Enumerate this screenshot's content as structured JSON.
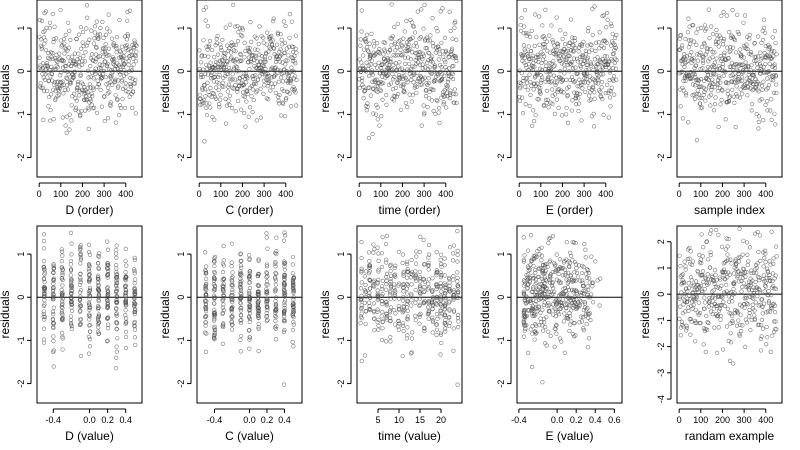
{
  "chart_data": [
    {
      "type": "scatter",
      "xlabel": "D (order)",
      "ylabel": "residuals",
      "xlim": [
        -10,
        475
      ],
      "ylim": [
        -2.45,
        1.65
      ],
      "xticks": [
        0,
        100,
        200,
        300,
        400
      ],
      "yticks": [
        -2,
        -1,
        0,
        1
      ],
      "reference_line_y": 0,
      "n": 450,
      "y_center": 0.05,
      "y_spread": 0.55,
      "x_mode": "order",
      "pattern": "u-shape"
    },
    {
      "type": "scatter",
      "xlabel": "C (order)",
      "ylabel": "residuals",
      "xlim": [
        -10,
        475
      ],
      "ylim": [
        -2.45,
        1.65
      ],
      "xticks": [
        0,
        100,
        200,
        300,
        400
      ],
      "yticks": [
        -2,
        -1,
        0,
        1
      ],
      "reference_line_y": 0,
      "n": 450,
      "y_center": 0.05,
      "y_spread": 0.55,
      "x_mode": "order",
      "pattern": "none"
    },
    {
      "type": "scatter",
      "xlabel": "time (order)",
      "ylabel": "residuals",
      "xlim": [
        -10,
        475
      ],
      "ylim": [
        -2.45,
        1.65
      ],
      "xticks": [
        0,
        100,
        200,
        300,
        400
      ],
      "yticks": [
        -2,
        -1,
        0,
        1
      ],
      "reference_line_y": 0,
      "n": 450,
      "y_center": 0.05,
      "y_spread": 0.55,
      "x_mode": "order",
      "pattern": "none"
    },
    {
      "type": "scatter",
      "xlabel": "E (order)",
      "ylabel": "residuals",
      "xlim": [
        -10,
        475
      ],
      "ylim": [
        -2.45,
        1.65
      ],
      "xticks": [
        0,
        100,
        200,
        300,
        400
      ],
      "yticks": [
        -2,
        -1,
        0,
        1
      ],
      "reference_line_y": 0,
      "n": 450,
      "y_center": 0.05,
      "y_spread": 0.55,
      "x_mode": "order",
      "pattern": "none"
    },
    {
      "type": "scatter",
      "xlabel": "sample index",
      "ylabel": "residuals",
      "xlim": [
        -10,
        475
      ],
      "ylim": [
        -2.45,
        1.65
      ],
      "xticks": [
        0,
        100,
        200,
        300,
        400
      ],
      "yticks": [
        -2,
        -1,
        0,
        1
      ],
      "reference_line_y": 0,
      "n": 450,
      "y_center": 0.05,
      "y_spread": 0.55,
      "x_mode": "order",
      "pattern": "none"
    },
    {
      "type": "scatter",
      "xlabel": "D (value)",
      "ylabel": "residuals",
      "xlim": [
        -0.58,
        0.58
      ],
      "ylim": [
        -2.45,
        1.65
      ],
      "xticks": [
        -0.4,
        0,
        0.2,
        0.4
      ],
      "xtick_labels": [
        "-0.4",
        "0.0",
        "0.2",
        "0.4"
      ],
      "yticks": [
        -2,
        -1,
        0,
        1
      ],
      "reference_line_y": 0,
      "n": 450,
      "y_center": 0.05,
      "y_spread": 0.55,
      "x_mode": "discrete",
      "x_levels": [
        -0.5,
        -0.4,
        -0.3,
        -0.2,
        -0.1,
        0,
        0.1,
        0.2,
        0.3,
        0.4,
        0.5
      ]
    },
    {
      "type": "scatter",
      "xlabel": "C (value)",
      "ylabel": "residuals",
      "xlim": [
        -0.6,
        0.6
      ],
      "ylim": [
        -2.45,
        1.65
      ],
      "xticks": [
        -0.4,
        0,
        0.2,
        0.4
      ],
      "xtick_labels": [
        "-0.4",
        "0.0",
        "0.2",
        "0.4"
      ],
      "yticks": [
        -2,
        -1,
        0,
        1
      ],
      "reference_line_y": 0,
      "n": 450,
      "y_center": 0.05,
      "y_spread": 0.55,
      "x_mode": "discrete",
      "x_levels": [
        -0.5,
        -0.4,
        -0.3,
        -0.2,
        -0.1,
        0,
        0.1,
        0.2,
        0.3,
        0.4,
        0.5
      ]
    },
    {
      "type": "scatter",
      "xlabel": "time (value)",
      "ylabel": "residuals",
      "xlim": [
        0,
        25
      ],
      "ylim": [
        -2.45,
        1.65
      ],
      "xticks": [
        5,
        10,
        15,
        20
      ],
      "yticks": [
        -2,
        -1,
        0,
        1
      ],
      "reference_line_y": 0,
      "n": 450,
      "y_center": 0.05,
      "y_spread": 0.55,
      "x_mode": "discrete",
      "x_levels": [
        1,
        2,
        3,
        4,
        5,
        6,
        7,
        8,
        9,
        10,
        11,
        12,
        13,
        14,
        15,
        16,
        17,
        18,
        19,
        20,
        21,
        22,
        23,
        24
      ]
    },
    {
      "type": "scatter",
      "xlabel": "E (value)",
      "ylabel": "residuals",
      "xlim": [
        -0.42,
        0.68
      ],
      "ylim": [
        -2.45,
        1.65
      ],
      "xticks": [
        -0.4,
        0,
        0.2,
        0.4,
        0.6
      ],
      "xtick_labels": [
        "-0.4",
        "0.0",
        "0.2",
        "0.4",
        "0.6"
      ],
      "yticks": [
        -2,
        -1,
        0,
        1
      ],
      "reference_line_y": 0,
      "n": 450,
      "y_center": 0.05,
      "y_spread": 0.55,
      "x_mode": "skewed",
      "x_range": [
        -0.35,
        0.62
      ]
    },
    {
      "type": "scatter",
      "xlabel": "randam example",
      "ylabel": "residuals",
      "xlim": [
        -10,
        475
      ],
      "ylim": [
        -4.15,
        2.6
      ],
      "xticks": [
        0,
        100,
        200,
        300,
        400
      ],
      "yticks": [
        -4,
        -3,
        -2,
        -1,
        0,
        1,
        2
      ],
      "reference_line_y": 0,
      "n": 450,
      "y_center": 0,
      "y_spread": 1,
      "x_mode": "order",
      "pattern": "none"
    }
  ]
}
